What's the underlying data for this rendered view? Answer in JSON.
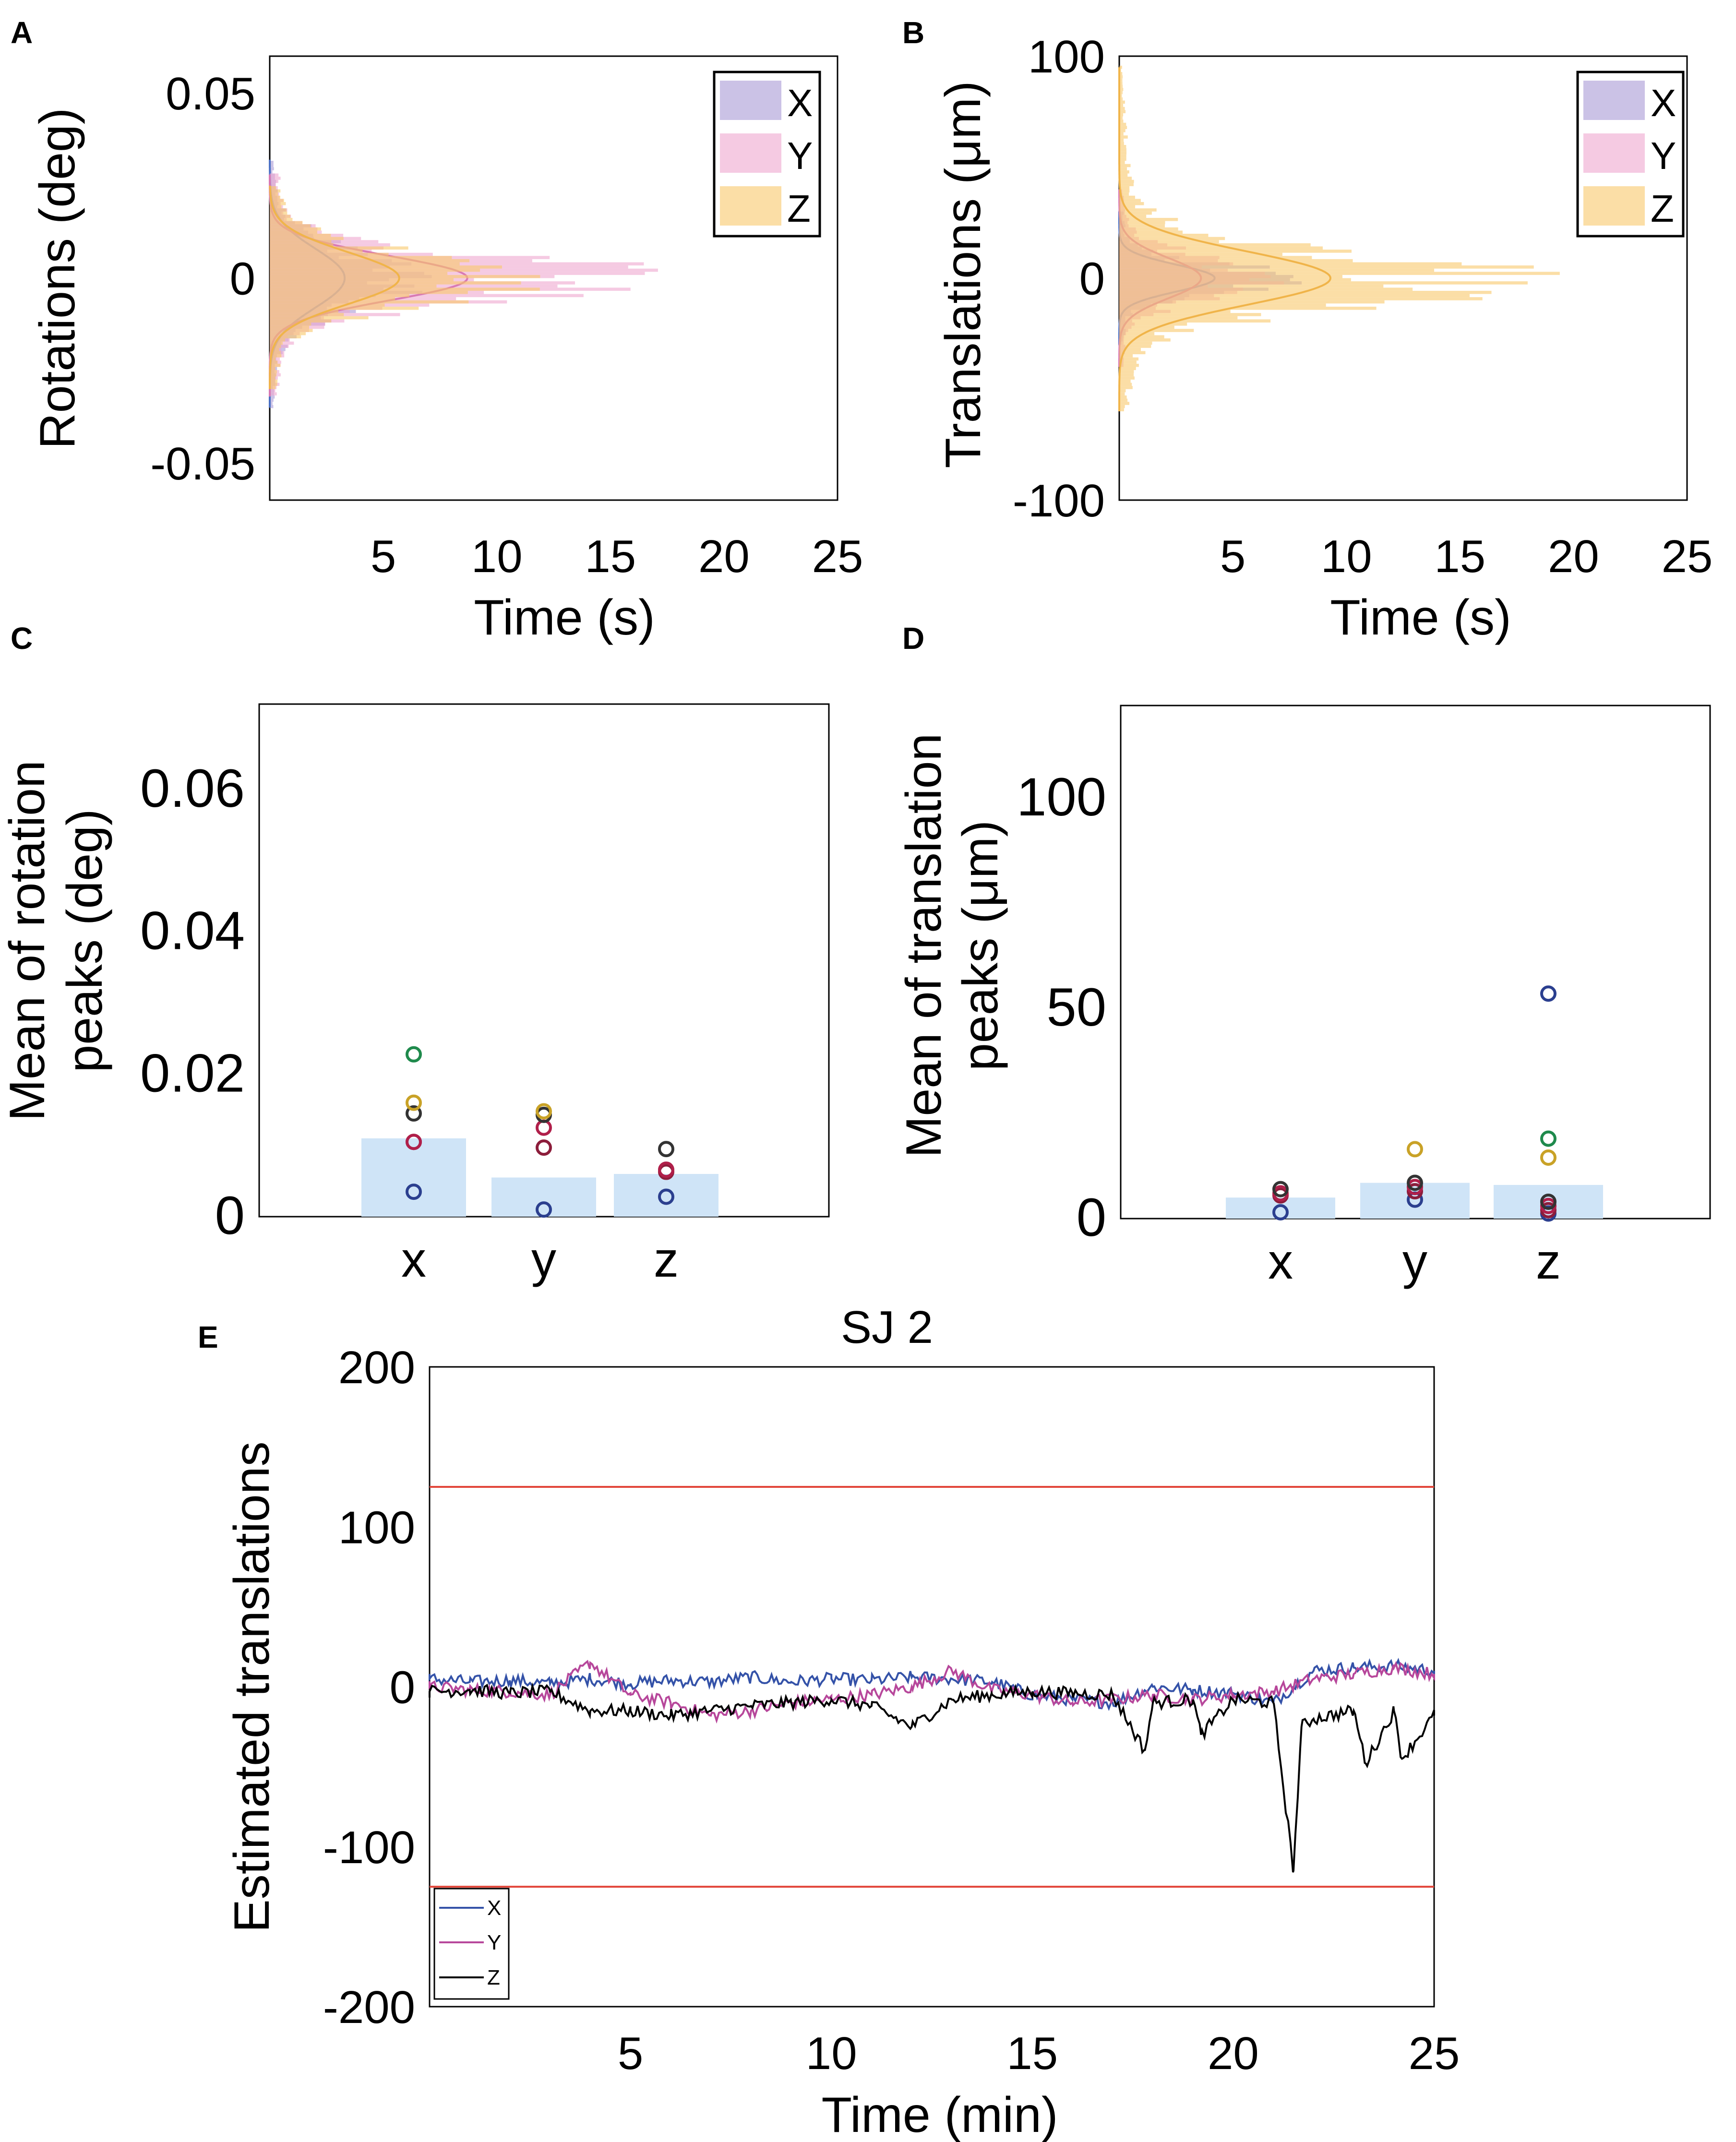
{
  "chart_data": [
    {
      "panel": "A",
      "type": "histogram",
      "xlabel": "Time (s)",
      "ylabel": "Rotations (deg)",
      "xticks": [
        "5",
        "10",
        "15",
        "20",
        "25"
      ],
      "yticks": [
        "0.05",
        "0",
        "-0.05"
      ],
      "xlim": [
        0,
        25
      ],
      "ylim": [
        -0.06,
        0.06
      ],
      "legend": [
        "X",
        "Y",
        "Z"
      ],
      "legend_position": "top-right",
      "distributions": [
        {
          "name": "X",
          "color": "#a99ad6",
          "center": 0,
          "sd": 0.008,
          "peak": 5.5,
          "range": [
            -0.035,
            0.032
          ]
        },
        {
          "name": "Y",
          "color": "#eea6cf",
          "center": 0,
          "sd": 0.006,
          "peak": 14.5,
          "range": [
            -0.032,
            0.028
          ]
        },
        {
          "name": "Z",
          "color": "#f9c86a",
          "center": 0,
          "sd": 0.007,
          "peak": 9.5,
          "range": [
            -0.03,
            0.025
          ]
        }
      ]
    },
    {
      "panel": "B",
      "type": "histogram",
      "xlabel": "Time (s)",
      "ylabel": "Translations (μm)",
      "xticks": [
        "5",
        "10",
        "15",
        "20",
        "25"
      ],
      "yticks": [
        "100",
        "0",
        "-100"
      ],
      "xlim": [
        0,
        25
      ],
      "ylim": [
        -100,
        100
      ],
      "legend": [
        "X",
        "Y",
        "Z"
      ],
      "legend_position": "top-right",
      "distributions": [
        {
          "name": "X",
          "color": "#a99ad6",
          "center": 0,
          "sd": 6,
          "peak": 7,
          "range": [
            -30,
            30
          ]
        },
        {
          "name": "Y",
          "color": "#eea6cf",
          "center": 0,
          "sd": 9,
          "peak": 6,
          "range": [
            -40,
            40
          ]
        },
        {
          "name": "Z",
          "color": "#f9c86a",
          "center": 0,
          "sd": 12,
          "peak": 15.5,
          "range": [
            -60,
            95
          ]
        }
      ]
    },
    {
      "panel": "C",
      "type": "bar",
      "ylabel": "Mean of rotation peaks (deg)",
      "ylabel_lines": [
        "Mean of rotation",
        "peaks (deg)"
      ],
      "categories": [
        "x",
        "y",
        "z"
      ],
      "values": [
        0.011,
        0.0055,
        0.006
      ],
      "yticks": [
        "0.06",
        "0.04",
        "0.02",
        "0"
      ],
      "ylim": [
        0,
        0.072
      ],
      "points": [
        [
          0.0035,
          0.0105,
          0.0105,
          0.0145,
          0.016,
          0.0228
        ],
        [
          0.001,
          0.0097,
          0.0125,
          0.0143,
          0.0148
        ],
        [
          0.0028,
          0.0063,
          0.0066,
          0.0095
        ]
      ],
      "point_colors": [
        "#2b3f8f",
        "#8c1d3b",
        "#b01f4a",
        "#333333",
        "#c9a227",
        "#1f8a4c"
      ]
    },
    {
      "panel": "D",
      "type": "bar",
      "ylabel": "Mean of translation peaks (μm)",
      "ylabel_lines": [
        "Mean of translation",
        "peaks (μm)"
      ],
      "categories": [
        "x",
        "y",
        "z"
      ],
      "values": [
        5,
        8.5,
        8
      ],
      "yticks": [
        "100",
        "50",
        "0"
      ],
      "ylim": [
        0,
        122
      ],
      "points": [
        [
          1.5,
          5.5,
          6,
          7
        ],
        [
          4.5,
          6.5,
          7.5,
          8.5,
          16.5
        ],
        [
          1.2,
          2,
          3,
          4,
          14.5,
          19,
          53.5
        ]
      ],
      "point_colors": [
        "#2b3f8f",
        "#8c1d3b",
        "#b01f4a",
        "#333333",
        "#c9a227",
        "#1f8a4c"
      ]
    },
    {
      "panel": "E",
      "type": "line",
      "title": "SJ 2",
      "xlabel": "Time (min)",
      "ylabel": "Estimated translations",
      "xticks": [
        "5",
        "10",
        "15",
        "20",
        "25"
      ],
      "yticks": [
        "200",
        "100",
        "0",
        "-100",
        "-200"
      ],
      "xlim": [
        0,
        25
      ],
      "ylim": [
        -200,
        200
      ],
      "thresholds": [
        125,
        -125
      ],
      "threshold_color": "#e2463a",
      "legend": [
        "X",
        "Y",
        "Z"
      ],
      "legend_position": "bottom-left",
      "series": [
        {
          "name": "X",
          "color": "#3452a8",
          "x": [
            0,
            1,
            2,
            3,
            4,
            5,
            6,
            7,
            8,
            9,
            10,
            11,
            12,
            13,
            14,
            15,
            16,
            17,
            18,
            19,
            20,
            21,
            22,
            23,
            24,
            25
          ],
          "values": [
            5,
            3,
            4,
            2,
            5,
            2,
            4,
            3,
            6,
            3,
            5,
            4,
            6,
            5,
            3,
            -5,
            -8,
            -10,
            0,
            -2,
            -4,
            -10,
            10,
            12,
            13,
            10
          ]
        },
        {
          "name": "Y",
          "color": "#b7479b",
          "x": [
            0,
            1,
            2,
            3,
            4,
            5,
            6,
            7,
            8,
            9,
            10,
            11,
            12,
            13,
            14,
            15,
            16,
            17,
            18,
            19,
            20,
            21,
            22,
            23,
            24,
            25
          ],
          "values": [
            0,
            -2,
            -3,
            -5,
            15,
            -5,
            -10,
            -18,
            -15,
            -10,
            -8,
            -5,
            0,
            10,
            -2,
            -5,
            -10,
            -8,
            -5,
            -8,
            -5,
            -3,
            5,
            8,
            12,
            8
          ]
        },
        {
          "name": "Z",
          "color": "#000000",
          "x": [
            0,
            1,
            2,
            3,
            4,
            5,
            6,
            7,
            8,
            9,
            10,
            11,
            12,
            13,
            14,
            15,
            16,
            17,
            17.8,
            18,
            19,
            19.2,
            20,
            21,
            21.5,
            21.7,
            22,
            23,
            23.3,
            24,
            24.2,
            25
          ],
          "values": [
            -3,
            -2,
            -4,
            -3,
            -15,
            -15,
            -18,
            -15,
            -12,
            -10,
            -8,
            -12,
            -25,
            -8,
            -5,
            -3,
            -4,
            -5,
            -40,
            -10,
            -8,
            -30,
            -8,
            -10,
            -115,
            -25,
            -20,
            -15,
            -48,
            -15,
            -45,
            -18
          ]
        }
      ]
    }
  ]
}
